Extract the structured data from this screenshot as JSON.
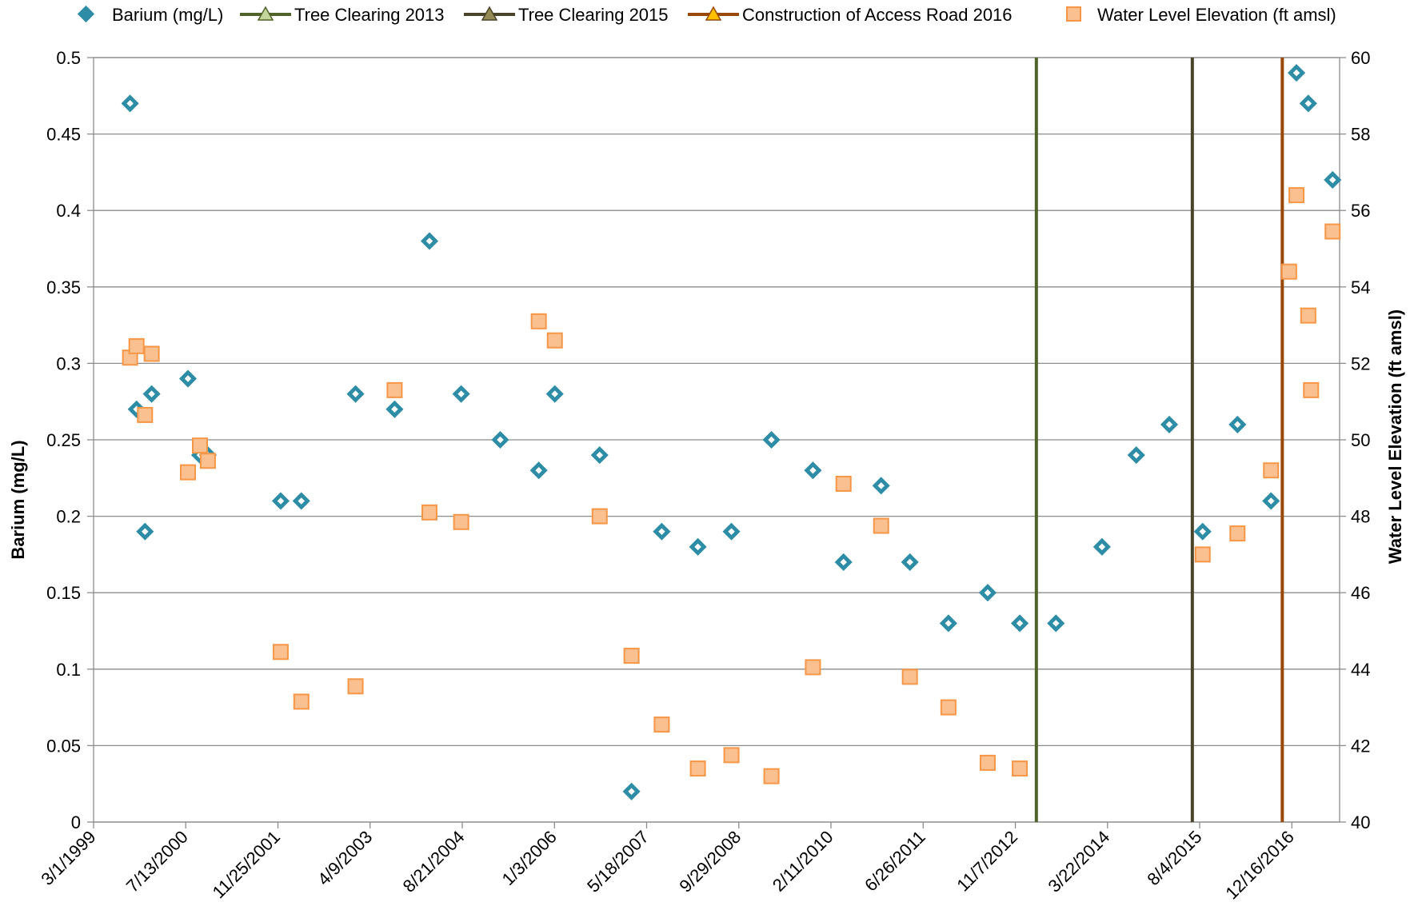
{
  "chart_data": {
    "type": "scatter",
    "title": "",
    "ylabel": "Barium (mg/L)",
    "y2label": "Water Level Elevation (ft amsl)",
    "ylim": [
      0,
      0.5
    ],
    "y2lim": [
      40,
      60
    ],
    "xlim": [
      "1999-03-01",
      "2017-09-01"
    ],
    "grid": "horizontal",
    "legend_position": "top",
    "x_tick_labels": [
      "3/1/1999",
      "7/13/2000",
      "11/25/2001",
      "4/9/2003",
      "8/21/2004",
      "1/3/2006",
      "5/18/2007",
      "9/29/2008",
      "2/11/2010",
      "6/26/2011",
      "11/7/2012",
      "3/22/2014",
      "8/4/2015",
      "12/16/2016"
    ],
    "x_ticks": [
      "1999-03-01",
      "2000-07-13",
      "2001-11-25",
      "2003-04-09",
      "2004-08-21",
      "2006-01-03",
      "2007-05-18",
      "2008-09-29",
      "2010-02-11",
      "2011-06-26",
      "2012-11-07",
      "2014-03-22",
      "2015-08-04",
      "2016-12-16"
    ],
    "y_tick_labels": [
      "0",
      "0.05",
      "0.1",
      "0.15",
      "0.2",
      "0.25",
      "0.3",
      "0.35",
      "0.4",
      "0.45",
      "0.5"
    ],
    "y2_tick_labels": [
      "40",
      "42",
      "44",
      "46",
      "48",
      "50",
      "52",
      "54",
      "56",
      "58",
      "60"
    ],
    "series": [
      {
        "name": "Barium (mg/L)",
        "axis": "left",
        "marker": "diamond",
        "color": "#2e8da6",
        "points": [
          [
            "1999-09-15",
            0.47
          ],
          [
            "1999-10-20",
            0.27
          ],
          [
            "1999-12-05",
            0.19
          ],
          [
            "2000-01-10",
            0.28
          ],
          [
            "2000-07-25",
            0.29
          ],
          [
            "2000-09-28",
            0.24
          ],
          [
            "2000-11-10",
            0.24
          ],
          [
            "2001-12-10",
            0.21
          ],
          [
            "2002-04-01",
            0.21
          ],
          [
            "2003-01-20",
            0.28
          ],
          [
            "2003-08-20",
            0.27
          ],
          [
            "2004-02-25",
            0.38
          ],
          [
            "2004-08-15",
            0.28
          ],
          [
            "2005-03-15",
            0.25
          ],
          [
            "2005-10-10",
            0.23
          ],
          [
            "2006-01-05",
            0.28
          ],
          [
            "2006-09-05",
            0.24
          ],
          [
            "2007-02-25",
            0.02
          ],
          [
            "2007-08-08",
            0.19
          ],
          [
            "2008-02-20",
            0.18
          ],
          [
            "2008-08-20",
            0.19
          ],
          [
            "2009-03-25",
            0.25
          ],
          [
            "2009-11-05",
            0.23
          ],
          [
            "2010-04-20",
            0.17
          ],
          [
            "2010-11-10",
            0.22
          ],
          [
            "2011-04-15",
            0.17
          ],
          [
            "2011-11-10",
            0.13
          ],
          [
            "2012-06-10",
            0.15
          ],
          [
            "2012-12-01",
            0.13
          ],
          [
            "2013-06-15",
            0.13
          ],
          [
            "2014-02-20",
            0.18
          ],
          [
            "2014-08-25",
            0.24
          ],
          [
            "2015-02-20",
            0.26
          ],
          [
            "2015-08-20",
            0.19
          ],
          [
            "2016-02-25",
            0.26
          ],
          [
            "2016-08-25",
            0.21
          ],
          [
            "2017-01-10",
            0.49
          ],
          [
            "2017-03-15",
            0.47
          ],
          [
            "2017-07-25",
            0.42
          ]
        ]
      },
      {
        "name": "Tree Clearing 2013",
        "axis": "left",
        "marker": "vline",
        "color": "#4f6228",
        "points": [
          [
            "2013-03-01",
            0
          ],
          [
            "2013-03-01",
            0.5
          ]
        ]
      },
      {
        "name": "Tree Clearing 2015",
        "axis": "left",
        "marker": "vline",
        "color": "#494429",
        "points": [
          [
            "2015-06-25",
            0
          ],
          [
            "2015-06-25",
            0.5
          ]
        ]
      },
      {
        "name": "Construction of Access Road 2016",
        "axis": "left",
        "marker": "vline",
        "color": "#984807",
        "points": [
          [
            "2016-10-25",
            0
          ],
          [
            "2016-10-25",
            0.5
          ]
        ]
      },
      {
        "name": "Water Level Elevation (ft amsl)",
        "axis": "right",
        "marker": "square",
        "color": "#f79646",
        "fill": "#fac090",
        "points": [
          [
            "1999-09-15",
            52.15
          ],
          [
            "1999-10-20",
            52.45
          ],
          [
            "1999-12-05",
            50.65
          ],
          [
            "2000-01-10",
            52.25
          ],
          [
            "2000-07-25",
            49.15
          ],
          [
            "2000-09-28",
            49.85
          ],
          [
            "2000-11-10",
            49.45
          ],
          [
            "2001-12-10",
            44.45
          ],
          [
            "2002-04-01",
            43.15
          ],
          [
            "2003-01-20",
            43.55
          ],
          [
            "2003-08-20",
            51.3
          ],
          [
            "2004-02-25",
            48.1
          ],
          [
            "2004-08-15",
            47.85
          ],
          [
            "2005-10-10",
            53.1
          ],
          [
            "2006-01-05",
            52.6
          ],
          [
            "2006-09-05",
            48.0
          ],
          [
            "2007-02-25",
            44.35
          ],
          [
            "2007-08-08",
            42.55
          ],
          [
            "2008-02-20",
            41.4
          ],
          [
            "2008-08-20",
            41.75
          ],
          [
            "2009-03-25",
            41.2
          ],
          [
            "2009-11-05",
            44.05
          ],
          [
            "2010-04-20",
            48.85
          ],
          [
            "2010-11-10",
            47.75
          ],
          [
            "2011-04-15",
            43.8
          ],
          [
            "2011-11-10",
            43.0
          ],
          [
            "2012-06-10",
            41.55
          ],
          [
            "2012-12-01",
            41.4
          ],
          [
            "2015-08-20",
            47.0
          ],
          [
            "2016-02-25",
            47.55
          ],
          [
            "2016-08-25",
            49.2
          ],
          [
            "2016-12-01",
            54.4
          ],
          [
            "2017-01-10",
            56.4
          ],
          [
            "2017-03-15",
            53.25
          ],
          [
            "2017-03-30",
            51.3
          ],
          [
            "2017-07-25",
            55.45
          ]
        ]
      }
    ]
  }
}
